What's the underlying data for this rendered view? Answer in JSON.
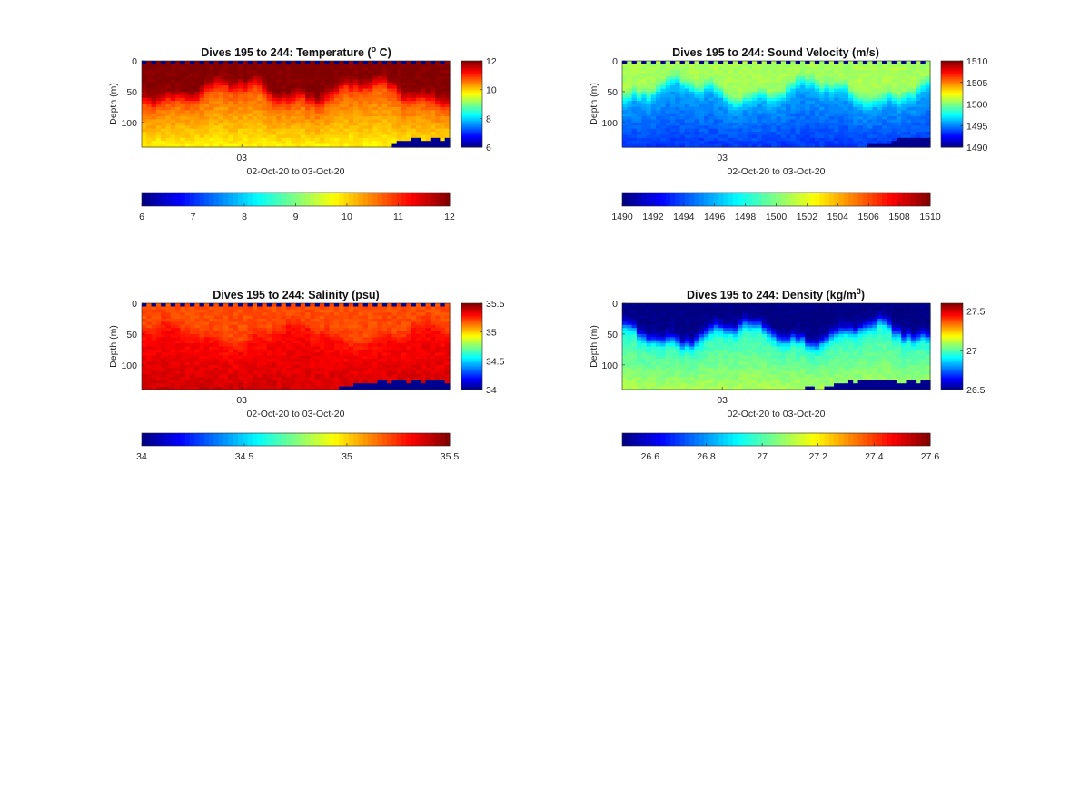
{
  "figure": {
    "colormap": "jet",
    "background": "#ffffff",
    "no_data_color": "#00008f"
  },
  "chart_data": [
    {
      "type": "heatmap",
      "title_prefix": "Dives 195 to 244: Temperature (",
      "title_sup": "o",
      "title_suffix": " C)",
      "ylabel": "Depth (m)",
      "xlabel": "02-Oct-20 to 03-Oct-20",
      "x_ticks": [
        "03"
      ],
      "x_tick_fraction": 0.325,
      "ylim": [
        0,
        140
      ],
      "y_ticks": [
        0,
        50,
        100
      ],
      "y_reversed": true,
      "columns": 64,
      "side_colorbar": {
        "limits": [
          6,
          12
        ],
        "ticks": [
          "6",
          "8",
          "10",
          "12"
        ]
      },
      "bottom_colorbar": {
        "limits": [
          6,
          12
        ],
        "ticks": [
          "6",
          "7",
          "8",
          "9",
          "10",
          "11",
          "12"
        ]
      },
      "field": {
        "surface_value": 12.0,
        "mid_value": 10.8,
        "deep_value": 9.8,
        "thermocline_depth_range_m": [
          30,
          70
        ]
      },
      "seafloor_depth_m": {
        "left": 150,
        "right": 126,
        "starts_at_column": 46
      }
    },
    {
      "type": "heatmap",
      "title_prefix": "Dives 195 to 244: Sound Velocity (m/s)",
      "title_sup": "",
      "title_suffix": "",
      "ylabel": "Depth (m)",
      "xlabel": "02-Oct-20 to 03-Oct-20",
      "x_ticks": [
        "03"
      ],
      "x_tick_fraction": 0.325,
      "ylim": [
        0,
        140
      ],
      "y_ticks": [
        0,
        50,
        100
      ],
      "y_reversed": true,
      "columns": 64,
      "side_colorbar": {
        "limits": [
          1490,
          1510
        ],
        "ticks": [
          "1490",
          "1495",
          "1500",
          "1505",
          "1510"
        ]
      },
      "bottom_colorbar": {
        "limits": [
          1490,
          1510
        ],
        "ticks": [
          "1490",
          "1492",
          "1494",
          "1496",
          "1498",
          "1500",
          "1502",
          "1504",
          "1506",
          "1508",
          "1510"
        ]
      },
      "field": {
        "surface_value": 1500.8,
        "mid_value": 1496.0,
        "deep_value": 1493.5,
        "thermocline_depth_range_m": [
          30,
          70
        ]
      },
      "seafloor_depth_m": {
        "left": 150,
        "right": 126,
        "starts_at_column": 46
      }
    },
    {
      "type": "heatmap",
      "title_prefix": "Dives 195 to 244: Salinity (psu)",
      "title_sup": "",
      "title_suffix": "",
      "ylabel": "Depth (m)",
      "xlabel": "02-Oct-20 to 03-Oct-20",
      "x_ticks": [
        "03"
      ],
      "x_tick_fraction": 0.325,
      "ylim": [
        0,
        140
      ],
      "y_ticks": [
        0,
        50,
        100
      ],
      "y_reversed": true,
      "columns": 64,
      "side_colorbar": {
        "limits": [
          34,
          35.5
        ],
        "ticks": [
          "34",
          "34.5",
          "35",
          "35.5"
        ]
      },
      "bottom_colorbar": {
        "limits": [
          34,
          35.5
        ],
        "ticks": [
          "34",
          "34.5",
          "35",
          "35.5"
        ]
      },
      "field": {
        "surface_value": 35.2,
        "mid_value": 35.3,
        "deep_value": 35.38,
        "thermocline_depth_range_m": [
          30,
          70
        ]
      },
      "seafloor_depth_m": {
        "left": 150,
        "right": 126,
        "starts_at_column": 28
      }
    },
    {
      "type": "heatmap",
      "title_prefix": "Dives 195 to 244: Density (kg/m",
      "title_sup": "3",
      "title_suffix": ")",
      "ylabel": "Depth (m)",
      "xlabel": "02-Oct-20 to 03-Oct-20",
      "x_ticks": [
        "03"
      ],
      "x_tick_fraction": 0.325,
      "ylim": [
        0,
        140
      ],
      "y_ticks": [
        0,
        50,
        100
      ],
      "y_reversed": true,
      "columns": 64,
      "side_colorbar": {
        "limits": [
          26.5,
          27.6
        ],
        "ticks": [
          "26.5",
          "27",
          "27.5"
        ]
      },
      "bottom_colorbar": {
        "limits": [
          26.5,
          27.6
        ],
        "ticks": [
          "26.6",
          "26.8",
          "27",
          "27.2",
          "27.4",
          "27.6"
        ]
      },
      "field": {
        "surface_value": 26.5,
        "mid_value": 26.95,
        "deep_value": 27.1,
        "thermocline_depth_range_m": [
          30,
          70
        ]
      },
      "seafloor_depth_m": {
        "left": 150,
        "right": 126,
        "starts_at_column": 28
      }
    }
  ]
}
